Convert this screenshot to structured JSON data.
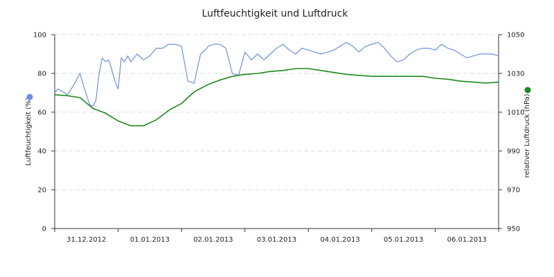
{
  "chart_data": {
    "type": "line",
    "title": "Luftfeuchtigkeit und Luftdruck",
    "x": {
      "tick_labels": [
        "31.12.2012",
        "01.01.2013",
        "02.01.2013",
        "03.01.2013",
        "04.01.2013",
        "05.01.2013",
        "06.01.2013"
      ],
      "range_days": [
        0,
        7
      ]
    },
    "y_left": {
      "label": "Luftfeuchtigkeit (%)",
      "ticks": [
        0,
        20,
        40,
        60,
        80,
        100
      ],
      "ylim": [
        0,
        100
      ]
    },
    "y_right": {
      "label": "relativer Luftdruck (hPa)",
      "ticks": [
        950,
        970,
        990,
        1010,
        1030,
        1050
      ],
      "ylim": [
        950,
        1050
      ]
    },
    "grid": true,
    "legend": "axis markers",
    "series": [
      {
        "name": "Luftfeuchtigkeit (%)",
        "axis": "left",
        "color": "#6b8fe8",
        "x": [
          0,
          0.05,
          0.1,
          0.2,
          0.3,
          0.4,
          0.45,
          0.55,
          0.6,
          0.65,
          0.7,
          0.75,
          0.8,
          0.85,
          0.9,
          0.95,
          1.0,
          1.05,
          1.1,
          1.15,
          1.2,
          1.3,
          1.4,
          1.5,
          1.6,
          1.7,
          1.75,
          1.8,
          1.9,
          2.0,
          2.1,
          2.2,
          2.3,
          2.4,
          2.42,
          2.5,
          2.6,
          2.7,
          2.8,
          2.9,
          3.0,
          3.05,
          3.1,
          3.2,
          3.3,
          3.4,
          3.5,
          3.6,
          3.7,
          3.8,
          3.9,
          4.0,
          4.1,
          4.2,
          4.3,
          4.4,
          4.5,
          4.6,
          4.7,
          4.8,
          4.9,
          5.0,
          5.1,
          5.2,
          5.3,
          5.4,
          5.5,
          5.6,
          5.7,
          5.8,
          5.9,
          6.0,
          6.1,
          6.2,
          6.3,
          6.4,
          6.5,
          6.6,
          6.7,
          6.8,
          6.9,
          7.0
        ],
        "values": [
          70,
          72,
          71,
          69,
          74,
          80,
          74,
          64,
          63,
          66,
          80,
          88,
          86,
          87,
          82,
          76,
          72,
          88,
          86,
          89,
          86,
          90,
          87,
          89,
          93,
          93,
          94,
          95,
          95,
          94,
          76,
          75,
          90,
          93,
          94,
          95,
          95,
          93,
          80,
          79,
          91,
          89,
          87,
          90,
          87,
          90,
          93,
          95,
          92,
          90,
          93,
          92,
          91,
          90,
          91,
          92,
          94,
          96,
          94,
          91,
          94,
          95,
          96,
          93,
          89,
          86,
          87,
          90,
          92,
          93,
          93,
          92,
          95,
          93,
          92,
          90,
          88,
          89,
          90,
          90,
          90,
          89
        ]
      },
      {
        "name": "relativer Luftdruck (hPa)",
        "axis": "right",
        "color": "#1a8a1a",
        "x": [
          0,
          0.2,
          0.4,
          0.6,
          0.8,
          1.0,
          1.2,
          1.4,
          1.6,
          1.8,
          2.0,
          2.2,
          2.4,
          2.6,
          2.8,
          3.0,
          3.2,
          3.4,
          3.6,
          3.8,
          4.0,
          4.2,
          4.4,
          4.6,
          4.8,
          5.0,
          5.2,
          5.4,
          5.6,
          5.8,
          6.0,
          6.2,
          6.4,
          6.6,
          6.8,
          7.0
        ],
        "values": [
          1019,
          1018.5,
          1017.5,
          1012,
          1009.5,
          1005.5,
          1003,
          1003,
          1006,
          1011,
          1014.5,
          1020.5,
          1024,
          1026.5,
          1028.5,
          1029.5,
          1030,
          1031,
          1031.5,
          1032.5,
          1032.5,
          1031.5,
          1030.5,
          1029.5,
          1029,
          1028.5,
          1028.5,
          1028.5,
          1028.5,
          1028.5,
          1027.5,
          1027,
          1026,
          1025.5,
          1025,
          1025.5
        ]
      }
    ]
  }
}
